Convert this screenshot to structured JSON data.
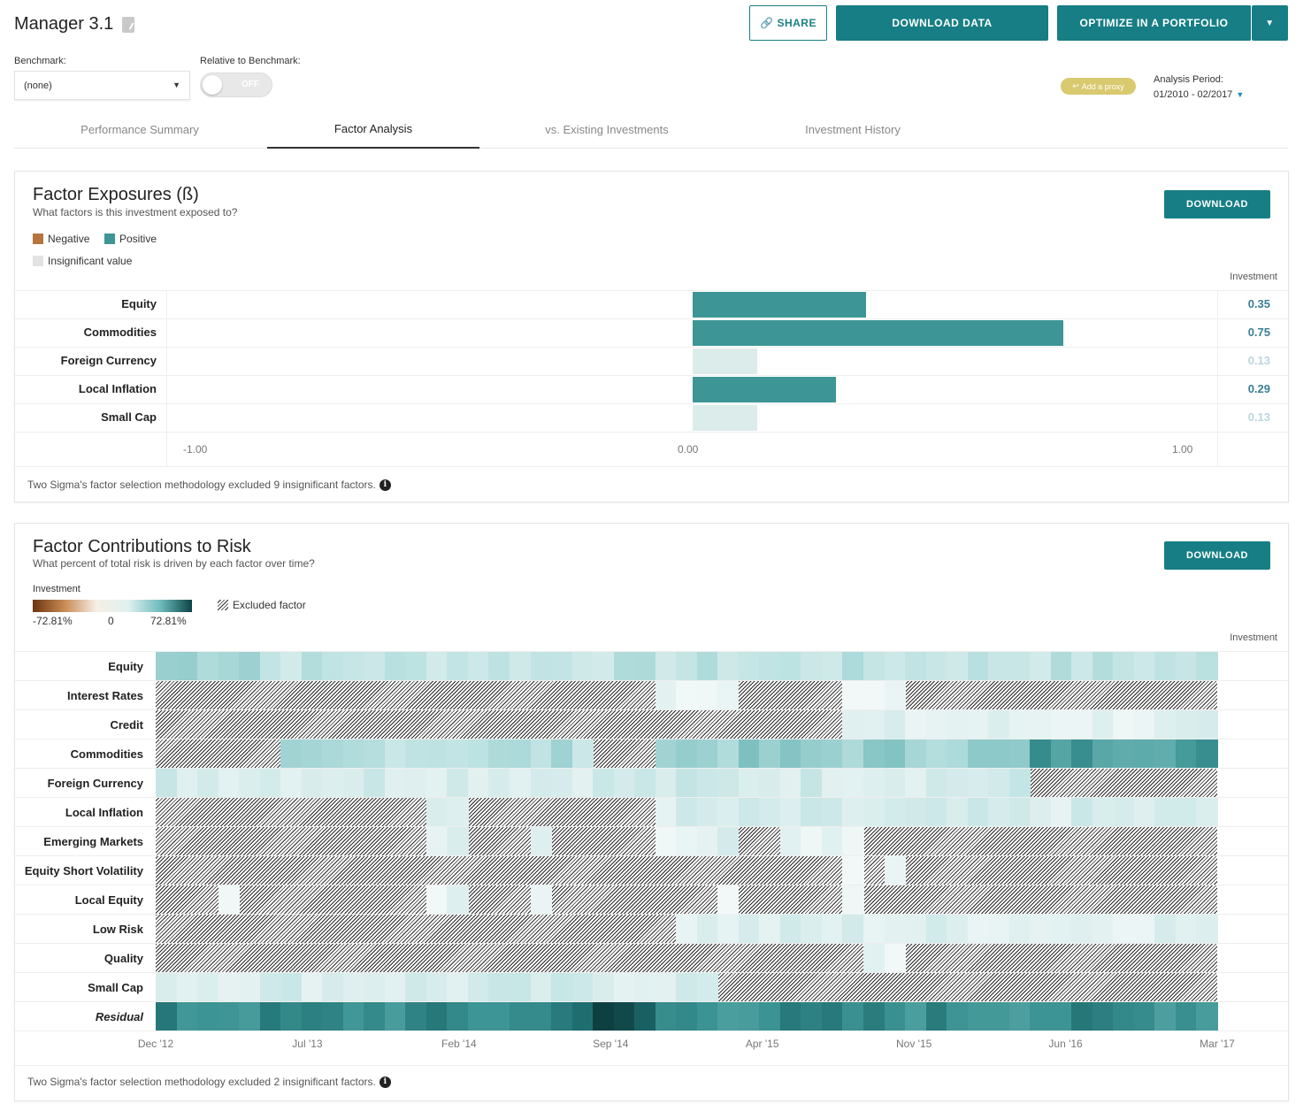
{
  "header": {
    "title": "Manager 3.1",
    "share_label": "SHARE",
    "download_data_label": "DOWNLOAD DATA",
    "optimize_label": "OPTIMIZE IN A PORTFOLIO",
    "benchmark_label": "Benchmark:",
    "benchmark_value": "(none)",
    "relative_label": "Relative to Benchmark:",
    "toggle_text": "OFF",
    "proxy_label": "Add a proxy",
    "period_label": "Analysis Period:",
    "period_value": "01/2010 - 02/2017"
  },
  "tabs": [
    {
      "label": "Performance Summary",
      "active": false
    },
    {
      "label": "Factor Analysis",
      "active": true
    },
    {
      "label": "vs. Existing Investments",
      "active": false
    },
    {
      "label": "Investment History",
      "active": false
    }
  ],
  "exposures": {
    "title": "Factor Exposures (ß)",
    "subtitle": "What factors is this investment exposed to?",
    "download_label": "DOWNLOAD",
    "legend_negative": "Negative",
    "legend_positive": "Positive",
    "legend_insignificant": "Insignificant value",
    "column_header": "Investment",
    "footnote": "Two Sigma's factor selection methodology excluded 9 insignificant factors.",
    "colors": {
      "positive": "#3e9595",
      "negative": "#b5753c",
      "insignificant": "#dcecea",
      "value_sig": "#3a7f95",
      "value_insig": "#b9d6dc"
    }
  },
  "chart_data": [
    {
      "type": "bar",
      "orientation": "horizontal",
      "categories": [
        "Equity",
        "Commodities",
        "Foreign Currency",
        "Local Inflation",
        "Small Cap"
      ],
      "values": [
        0.35,
        0.75,
        0.13,
        0.29,
        0.13
      ],
      "value_labels": [
        "0.35",
        "0.75",
        "0.13",
        "0.29",
        "0.13"
      ],
      "significant": [
        true,
        true,
        false,
        true,
        false
      ],
      "xlim": [
        -1.0,
        1.0
      ],
      "xticks": [
        "-1.00",
        "0.00",
        "1.00"
      ]
    },
    {
      "type": "heatmap",
      "rows": [
        "Equity",
        "Interest Rates",
        "Credit",
        "Commodities",
        "Foreign Currency",
        "Local Inflation",
        "Emerging Markets",
        "Equity Short Volatility",
        "Local Equity",
        "Low Risk",
        "Quality",
        "Small Cap",
        "Residual"
      ],
      "x_ticks": [
        "Dec '12",
        "Jul '13",
        "Feb '14",
        "Sep '14",
        "Apr '15",
        "Nov '15",
        "Jun '16",
        "Mar '17"
      ],
      "scale_min": "-72.81%",
      "scale_mid": "0",
      "scale_max": "72.81%",
      "scale_label": "Investment",
      "excluded_label": "Excluded factor",
      "column_header": "Investment"
    }
  ],
  "risk": {
    "title": "Factor Contributions to Risk",
    "subtitle": "What percent of total risk is driven by each factor over time?",
    "download_label": "DOWNLOAD",
    "footnote": "Two Sigma's factor selection methodology excluded 2 insignificant factors."
  }
}
